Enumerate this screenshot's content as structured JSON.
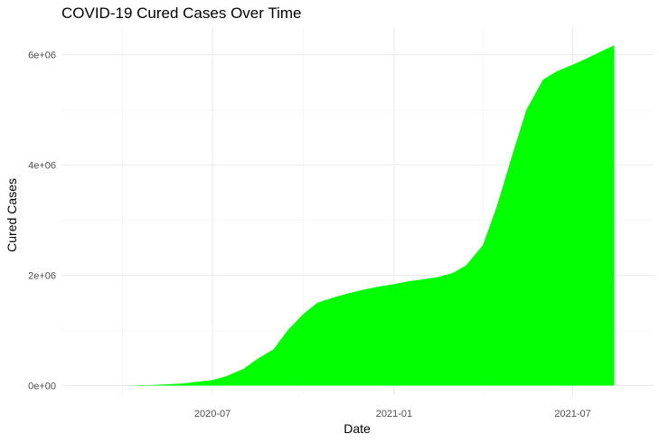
{
  "chart_data": {
    "type": "area",
    "title": "COVID-19 Cured Cases Over Time",
    "xlabel": "Date",
    "ylabel": "Cured Cases",
    "fill_color": "#00ff00",
    "grid": true,
    "legend": "none",
    "xlim": [
      "2020-01-30",
      "2021-09-20"
    ],
    "ylim": [
      0,
      6200000
    ],
    "x_major_ticks": [
      {
        "value": "2020-07-01",
        "label": "2020-07"
      },
      {
        "value": "2021-01-01",
        "label": "2021-01"
      },
      {
        "value": "2021-07-01",
        "label": "2021-07"
      }
    ],
    "x_minor_ticks": [
      "2020-04-01",
      "2020-10-01",
      "2021-04-01"
    ],
    "y_major_ticks": [
      {
        "value": 0,
        "label": "0e+00"
      },
      {
        "value": 2000000,
        "label": "2e+06"
      },
      {
        "value": 4000000,
        "label": "4e+06"
      },
      {
        "value": 6000000,
        "label": "6e+06"
      }
    ],
    "y_minor_ticks": [
      1000000,
      3000000,
      5000000
    ],
    "x": [
      "2020-03-01",
      "2020-04-01",
      "2020-05-01",
      "2020-06-01",
      "2020-07-01",
      "2020-07-15",
      "2020-08-01",
      "2020-08-15",
      "2020-09-01",
      "2020-09-15",
      "2020-10-01",
      "2020-10-15",
      "2020-11-01",
      "2020-11-15",
      "2020-12-01",
      "2020-12-15",
      "2021-01-01",
      "2021-01-15",
      "2021-02-01",
      "2021-02-15",
      "2021-03-01",
      "2021-03-15",
      "2021-04-01",
      "2021-04-15",
      "2021-05-01",
      "2021-05-15",
      "2021-06-01",
      "2021-06-15",
      "2021-07-01",
      "2021-07-15",
      "2021-08-01",
      "2021-08-12"
    ],
    "y": [
      0,
      0,
      10000,
      40000,
      100000,
      170000,
      300000,
      480000,
      660000,
      1000000,
      1300000,
      1500000,
      1600000,
      1670000,
      1740000,
      1790000,
      1840000,
      1890000,
      1930000,
      1970000,
      2040000,
      2180000,
      2550000,
      3250000,
      4200000,
      5000000,
      5550000,
      5700000,
      5820000,
      5930000,
      6080000,
      6170000
    ]
  }
}
